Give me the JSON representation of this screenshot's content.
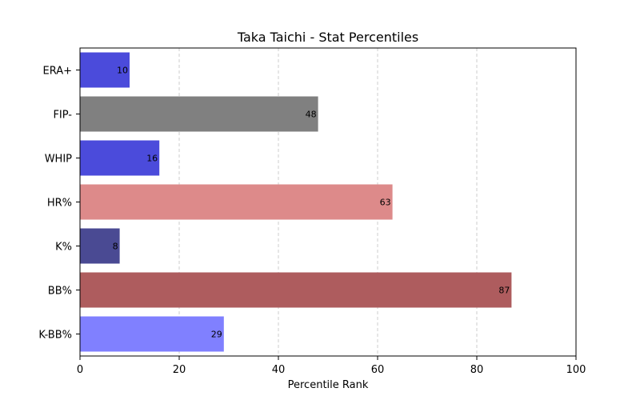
{
  "chart_data": {
    "type": "bar",
    "orientation": "horizontal",
    "title": "Taka Taichi - Stat Percentiles",
    "xlabel": "Percentile Rank",
    "ylabel": "",
    "xlim": [
      0,
      100
    ],
    "xticks": [
      0,
      20,
      40,
      60,
      80,
      100
    ],
    "grid": "x-dashed",
    "categories": [
      "ERA+",
      "FIP-",
      "WHIP",
      "HR%",
      "K%",
      "BB%",
      "K-BB%"
    ],
    "values": [
      10,
      48,
      16,
      63,
      8,
      87,
      29
    ],
    "colors": [
      "#4b4bdb",
      "#808080",
      "#4b4bdb",
      "#dd8a8a",
      "#4a4a93",
      "#ae5c5e",
      "#8080ff"
    ]
  }
}
